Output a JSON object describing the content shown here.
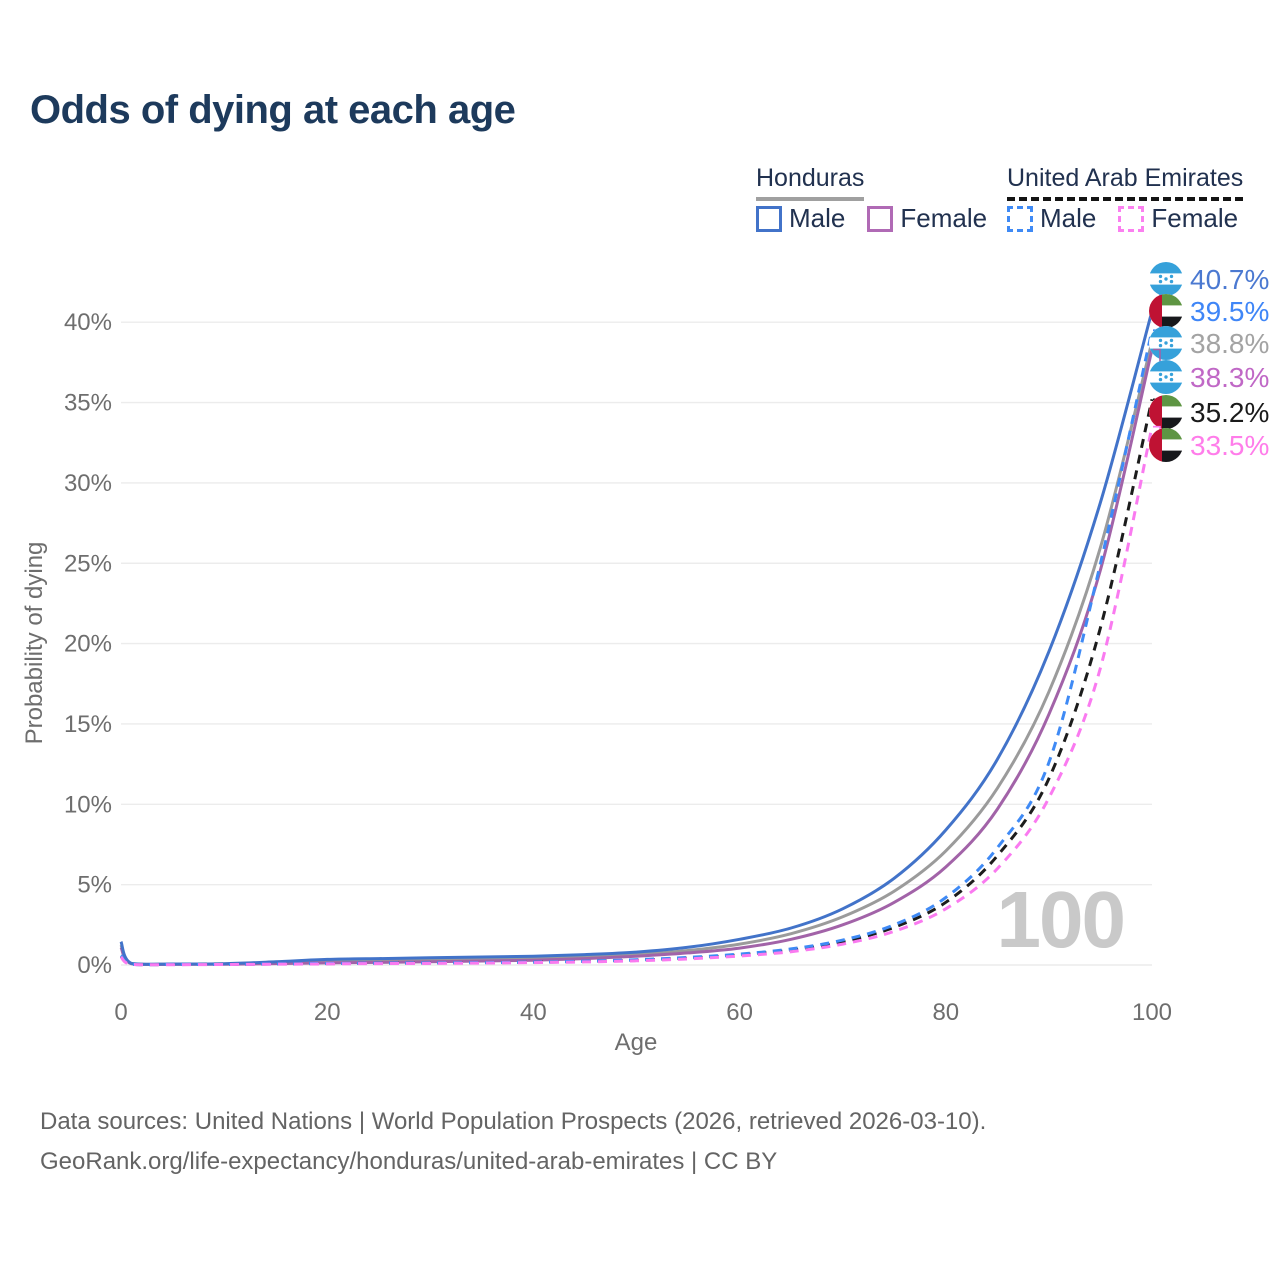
{
  "title": "Odds of dying at each age",
  "legend": {
    "groups": [
      {
        "name": "Honduras",
        "line_color": "#a0a0a0",
        "dashed": false,
        "entries": [
          {
            "label": "Male",
            "color": "#4273c9",
            "dashed": false
          },
          {
            "label": "Female",
            "color": "#b06ab5",
            "dashed": false
          }
        ]
      },
      {
        "name": "United Arab Emirates",
        "line_color": "#141414",
        "dashed": true,
        "entries": [
          {
            "label": "Male",
            "color": "#3f8af5",
            "dashed": true
          },
          {
            "label": "Female",
            "color": "#fb80f0",
            "dashed": true
          }
        ]
      }
    ]
  },
  "chart_data": {
    "type": "line",
    "title": "Odds of dying at each age",
    "xlabel": "Age",
    "ylabel": "Probability of dying",
    "x_range": [
      0,
      100
    ],
    "y_range_pct": [
      0,
      43
    ],
    "grid": true,
    "watermark": "100",
    "xticks": [
      0,
      20,
      40,
      60,
      80,
      100
    ],
    "ytick_values": [
      0,
      5,
      10,
      15,
      20,
      25,
      30,
      35,
      40
    ],
    "ytick_labels": [
      "0%",
      "5%",
      "10%",
      "15%",
      "20%",
      "25%",
      "30%",
      "35%",
      "40%"
    ],
    "x": [
      0,
      1,
      5,
      10,
      15,
      20,
      25,
      30,
      35,
      40,
      45,
      50,
      55,
      60,
      65,
      70,
      75,
      80,
      85,
      90,
      95,
      100
    ],
    "series": [
      {
        "id": "hn-m",
        "name": "Honduras Male",
        "country": "honduras",
        "sex": "male",
        "color": "#4273c9",
        "label_color": "#4b79d1",
        "dashed": false,
        "end_label": "40.7%",
        "end_value": 40.7,
        "label_row": 0,
        "values_pct": [
          1.45,
          0.1,
          0.06,
          0.08,
          0.2,
          0.35,
          0.4,
          0.45,
          0.5,
          0.55,
          0.65,
          0.8,
          1.1,
          1.6,
          2.3,
          3.5,
          5.4,
          8.4,
          12.8,
          19.5,
          28.8,
          40.7
        ]
      },
      {
        "id": "uae-m",
        "name": "United Arab Emirates Male",
        "country": "uae",
        "sex": "male",
        "color": "#3f8af5",
        "label_color": "#3f86f7",
        "dashed": true,
        "end_label": "39.5%",
        "end_value": 39.5,
        "label_row": 1,
        "values_pct": [
          0.6,
          0.05,
          0.03,
          0.04,
          0.07,
          0.1,
          0.12,
          0.13,
          0.15,
          0.18,
          0.24,
          0.33,
          0.47,
          0.68,
          1.0,
          1.55,
          2.5,
          4.2,
          7.3,
          12.6,
          25.0,
          39.5
        ]
      },
      {
        "id": "hn-all",
        "name": "Honduras",
        "country": "honduras",
        "sex": "both",
        "color": "#9b9b9b",
        "label_color": "#a3a3a3",
        "dashed": false,
        "end_label": "38.8%",
        "end_value": 38.8,
        "label_row": 2,
        "values_pct": [
          1.25,
          0.09,
          0.05,
          0.07,
          0.15,
          0.25,
          0.28,
          0.3,
          0.35,
          0.4,
          0.5,
          0.65,
          0.9,
          1.3,
          1.95,
          3.0,
          4.6,
          7.1,
          11.0,
          17.0,
          26.0,
          38.8
        ]
      },
      {
        "id": "hn-f",
        "name": "Honduras Female",
        "country": "honduras",
        "sex": "female",
        "color": "#a263a8",
        "label_color": "#c068c6",
        "dashed": false,
        "end_label": "38.3%",
        "end_value": 38.3,
        "label_row": 3,
        "values_pct": [
          1.1,
          0.08,
          0.04,
          0.05,
          0.09,
          0.13,
          0.16,
          0.2,
          0.25,
          0.3,
          0.4,
          0.55,
          0.75,
          1.05,
          1.6,
          2.5,
          3.9,
          6.1,
          9.7,
          15.6,
          24.6,
          38.3
        ]
      },
      {
        "id": "uae-all",
        "name": "United Arab Emirates",
        "country": "uae",
        "sex": "both",
        "color": "#1c1c1c",
        "label_color": "#1a1a1a",
        "dashed": true,
        "end_label": "35.2%",
        "end_value": 35.2,
        "label_row": 4,
        "values_pct": [
          0.55,
          0.05,
          0.03,
          0.04,
          0.06,
          0.09,
          0.1,
          0.12,
          0.14,
          0.17,
          0.22,
          0.3,
          0.43,
          0.63,
          0.93,
          1.45,
          2.35,
          3.9,
          6.8,
          11.6,
          21.0,
          35.2
        ]
      },
      {
        "id": "uae-f",
        "name": "United Arab Emirates Female",
        "country": "uae",
        "sex": "female",
        "color": "#fa7af0",
        "label_color": "#ff7dea",
        "dashed": true,
        "end_label": "33.5%",
        "end_value": 33.5,
        "label_row": 5,
        "values_pct": [
          0.5,
          0.04,
          0.02,
          0.03,
          0.05,
          0.07,
          0.09,
          0.1,
          0.12,
          0.15,
          0.19,
          0.26,
          0.38,
          0.56,
          0.83,
          1.3,
          2.1,
          3.5,
          6.0,
          10.4,
          18.5,
          33.5
        ]
      }
    ]
  },
  "footer": {
    "line1": "Data sources: United Nations | World Population Prospects (2026, retrieved 2026-03-10).",
    "line2": "GeoRank.org/life-expectancy/honduras/united-arab-emirates | CC BY"
  }
}
